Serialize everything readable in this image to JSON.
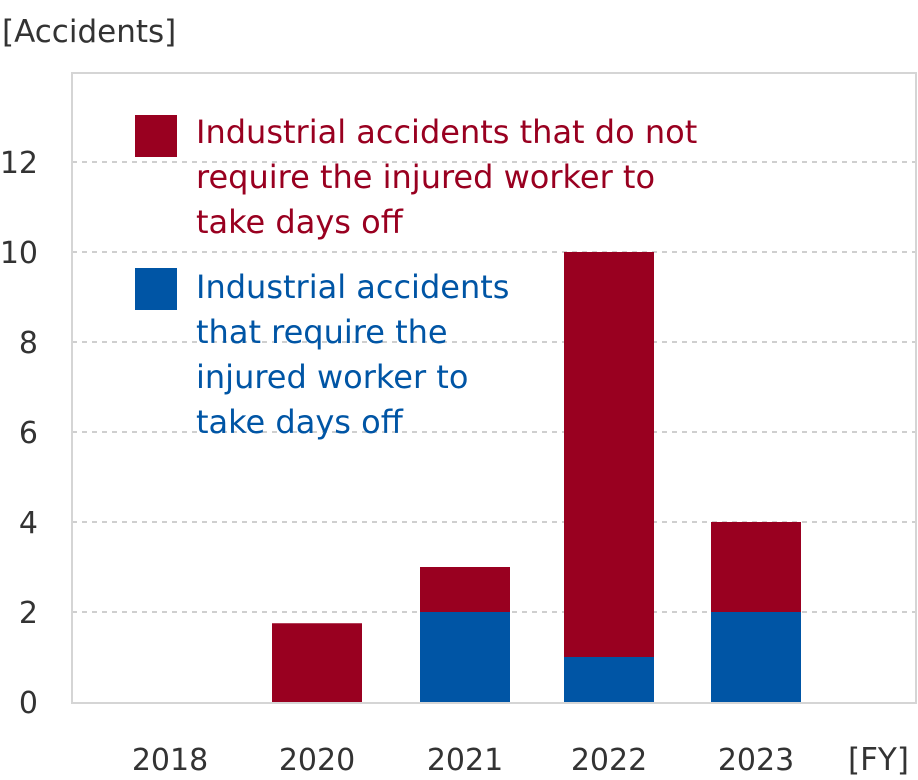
{
  "chart_data": {
    "type": "bar",
    "stacked": true,
    "y_unit_label": "[Accidents]",
    "x_unit_label": "[FY]",
    "categories": [
      "2018",
      "2020",
      "2021",
      "2022",
      "2023"
    ],
    "series": [
      {
        "name": "Industrial accidents that require the injured worker to take days off",
        "legend_lines": [
          "Industrial accidents",
          "that require the",
          "injured worker to",
          "take days off"
        ],
        "color": "#0055a5",
        "values": [
          0,
          0,
          2,
          1,
          2
        ]
      },
      {
        "name": "Industrial accidents that do not require the injured worker to take days off",
        "legend_lines": [
          "Industrial accidents that do not",
          "require the injured worker to",
          "take days off"
        ],
        "color": "#990020",
        "values": [
          0,
          1.75,
          1,
          9,
          2
        ]
      }
    ],
    "ylim": [
      0,
      14
    ],
    "yticks": [
      0,
      2,
      4,
      6,
      8,
      10,
      12
    ],
    "grid": true,
    "legend_position": "top-left"
  }
}
